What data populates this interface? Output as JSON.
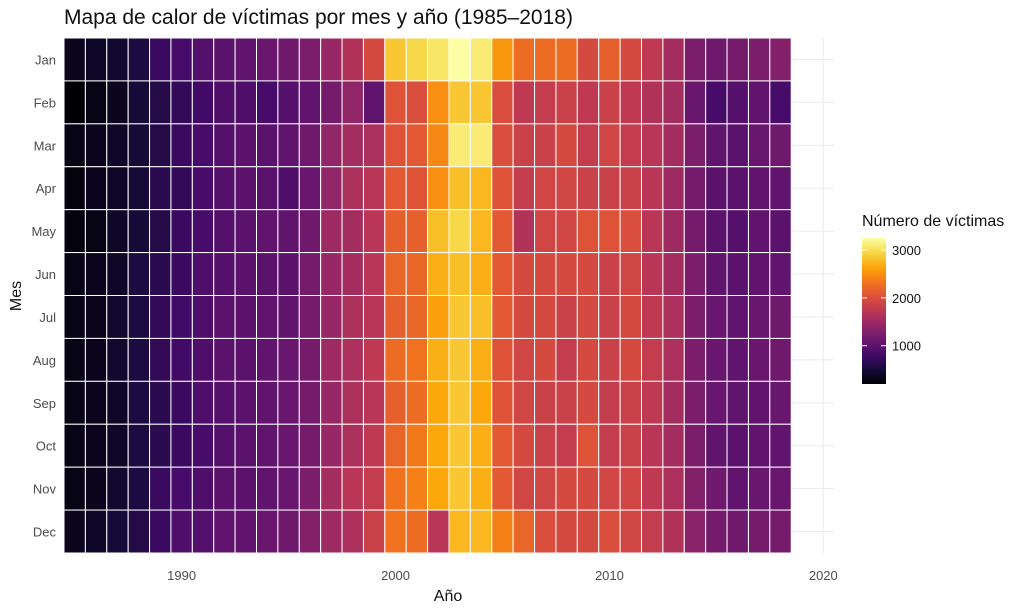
{
  "chart_data": {
    "type": "heatmap",
    "title": "Mapa de calor de víctimas por mes y año (1985–2018)",
    "xlabel": "Año",
    "ylabel": "Mes",
    "x_ticks": [
      1990,
      2000,
      2010,
      2020
    ],
    "xlim": [
      1984.5,
      2020.5
    ],
    "years": [
      1985,
      1986,
      1987,
      1988,
      1989,
      1990,
      1991,
      1992,
      1993,
      1994,
      1995,
      1996,
      1997,
      1998,
      1999,
      2000,
      2001,
      2002,
      2003,
      2004,
      2005,
      2006,
      2007,
      2008,
      2009,
      2010,
      2011,
      2012,
      2013,
      2014,
      2015,
      2016,
      2017,
      2018
    ],
    "months": [
      "Jan",
      "Feb",
      "Mar",
      "Apr",
      "May",
      "Jun",
      "Jul",
      "Aug",
      "Sep",
      "Oct",
      "Nov",
      "Dec"
    ],
    "legend": {
      "title": "Número de víctimas",
      "ticks": [
        1000,
        2000,
        3000
      ],
      "min": 200,
      "max": 3250,
      "palette": "inferno"
    },
    "grid": true,
    "values": [
      [
        350,
        400,
        450,
        550,
        750,
        850,
        950,
        1000,
        1050,
        1100,
        1150,
        1250,
        1450,
        1650,
        1950,
        2850,
        2950,
        3050,
        3250,
        3100,
        2550,
        2250,
        2250,
        2250,
        1950,
        2150,
        1950,
        1750,
        1550,
        1250,
        1150,
        1200,
        1250,
        1300
      ],
      [
        200,
        300,
        350,
        500,
        600,
        700,
        800,
        900,
        900,
        850,
        950,
        1050,
        1200,
        1400,
        1050,
        2050,
        2000,
        2500,
        2850,
        2850,
        2000,
        1750,
        1800,
        1850,
        1750,
        1850,
        1750,
        1650,
        1550,
        1100,
        850,
        950,
        1050,
        850
      ],
      [
        300,
        350,
        400,
        500,
        600,
        750,
        850,
        950,
        1000,
        1000,
        1050,
        1150,
        1400,
        1550,
        1600,
        2050,
        2100,
        2450,
        3100,
        3100,
        2000,
        1850,
        1850,
        1950,
        1800,
        1900,
        1800,
        1700,
        1550,
        1250,
        1050,
        1000,
        1100,
        1150
      ],
      [
        250,
        350,
        400,
        500,
        650,
        700,
        850,
        950,
        1000,
        1000,
        900,
        1100,
        1400,
        1600,
        1700,
        2100,
        2050,
        2500,
        2800,
        2750,
        2050,
        1800,
        1900,
        1900,
        1850,
        1850,
        1850,
        1700,
        1500,
        1200,
        1000,
        1000,
        1050,
        1050
      ],
      [
        250,
        300,
        400,
        500,
        600,
        750,
        850,
        950,
        1000,
        1050,
        1050,
        1150,
        1500,
        1550,
        1700,
        2150,
        2150,
        2800,
        2950,
        2750,
        2100,
        1650,
        1900,
        1900,
        2050,
        2050,
        2000,
        1700,
        1500,
        1200,
        1000,
        950,
        1050,
        1000
      ],
      [
        300,
        350,
        400,
        550,
        650,
        750,
        900,
        950,
        1000,
        1000,
        1000,
        1200,
        1450,
        1550,
        1700,
        2200,
        2200,
        2700,
        2800,
        2700,
        2100,
        1950,
        1950,
        1950,
        1950,
        1850,
        1900,
        1700,
        1550,
        1250,
        1050,
        1000,
        1050,
        1050
      ],
      [
        300,
        350,
        450,
        550,
        700,
        800,
        900,
        1000,
        1000,
        1050,
        1050,
        1200,
        1450,
        1600,
        1700,
        2150,
        2200,
        2600,
        2850,
        2800,
        2100,
        1950,
        1950,
        1850,
        1950,
        1850,
        1950,
        1750,
        1600,
        1250,
        1100,
        1050,
        1100,
        1150
      ],
      [
        300,
        350,
        450,
        550,
        700,
        800,
        900,
        1000,
        1000,
        1050,
        1100,
        1200,
        1500,
        1600,
        1750,
        2250,
        2300,
        2700,
        2850,
        2700,
        2050,
        1900,
        1950,
        1800,
        1950,
        1850,
        1950,
        1800,
        1600,
        1250,
        1100,
        1050,
        1100,
        1150
      ],
      [
        300,
        350,
        400,
        550,
        650,
        750,
        900,
        950,
        1000,
        1050,
        1100,
        1200,
        1450,
        1600,
        1700,
        2150,
        2250,
        2650,
        2850,
        2650,
        2050,
        1900,
        1850,
        1850,
        1950,
        1800,
        1850,
        1750,
        1550,
        1250,
        1100,
        1050,
        1050,
        1100
      ],
      [
        300,
        350,
        400,
        550,
        650,
        750,
        850,
        950,
        1000,
        1050,
        1100,
        1200,
        1450,
        1600,
        1750,
        2200,
        2350,
        2650,
        2850,
        2700,
        2100,
        1950,
        1850,
        1800,
        2050,
        1800,
        1850,
        1700,
        1550,
        1250,
        1050,
        1000,
        1050,
        1050
      ],
      [
        300,
        350,
        450,
        550,
        750,
        850,
        900,
        1000,
        1000,
        1050,
        1100,
        1250,
        1550,
        1700,
        1800,
        2300,
        2400,
        2650,
        2850,
        2700,
        2100,
        1900,
        1900,
        1950,
        1950,
        1900,
        1900,
        1750,
        1600,
        1300,
        1150,
        1050,
        1100,
        1100
      ],
      [
        350,
        400,
        500,
        600,
        750,
        900,
        950,
        1050,
        1050,
        1100,
        1150,
        1300,
        1500,
        1600,
        1850,
        2300,
        2250,
        1700,
        2750,
        2750,
        2400,
        2200,
        2000,
        1950,
        1950,
        2000,
        1900,
        1800,
        1650,
        1350,
        1200,
        1150,
        1200,
        1200
      ]
    ]
  }
}
